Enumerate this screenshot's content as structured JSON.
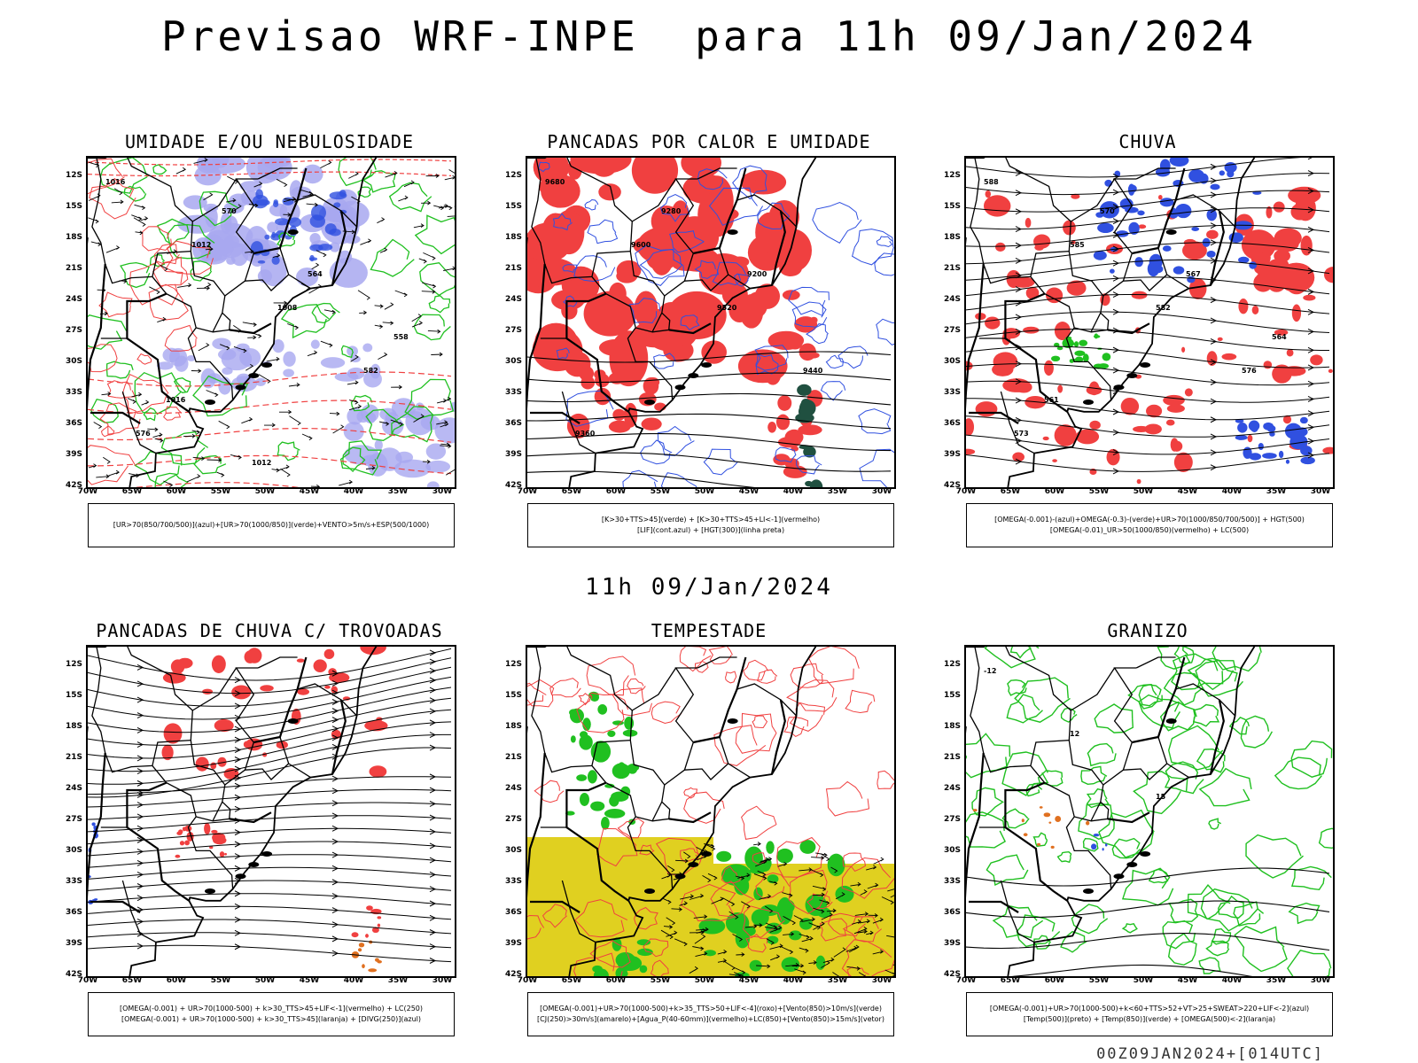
{
  "header": {
    "title": "Previsao WRF-INPE  para 11h 09/Jan/2024"
  },
  "mid_time": "11h 09/Jan/2024",
  "footer": "00Z09JAN2024+[014UTC]",
  "axes": {
    "lat_labels": [
      "12S",
      "15S",
      "18S",
      "21S",
      "24S",
      "27S",
      "30S",
      "33S",
      "36S",
      "39S",
      "42S"
    ],
    "lon_labels": [
      "70W",
      "65W",
      "60W",
      "55W",
      "50W",
      "45W",
      "40W",
      "35W",
      "30W"
    ]
  },
  "panels": [
    {
      "id": "umidade",
      "title": "UMIDADE E/OU NEBULOSIDADE",
      "legend": [
        "[UR>70(850/700/500)](azul)+[UR>70(1000/850)](verde)+VENTO>5m/s+ESP(500/1000)"
      ]
    },
    {
      "id": "pancadas-calor",
      "title": "PANCADAS POR CALOR E UMIDADE",
      "legend": [
        "[K>30+TTS>45](verde) + [K>30+TTS>45+LI<-1](vermelho)",
        "[LIF](cont.azul) + [HGT(300)](linha preta)"
      ]
    },
    {
      "id": "chuva",
      "title": "CHUVA",
      "legend": [
        "[OMEGA(-0.001)-(azul)+OMEGA(-0.3)-(verde)+UR>70(1000/850/700/500)] + HGT(500)",
        "[OMEGA(-0.01)_UR>50(1000/850)(vermelho) + LC(500)"
      ]
    },
    {
      "id": "trovoadas",
      "title": "PANCADAS DE CHUVA C/ TROVOADAS",
      "legend": [
        "[OMEGA(-0.001) + UR>70(1000-500) + k>30_TTS>45+LIF<-1](vermelho) + LC(250)",
        "[OMEGA(-0.001) + UR>70(1000-500) + k>30_TTS>45](laranja) + [DIVG(250)](azul)"
      ]
    },
    {
      "id": "tempestade",
      "title": "TEMPESTADE",
      "legend": [
        "[OMEGA(-0.001)+UR>70(1000-500)+k>35_TTS>50+LIF<-4](roxo)+[Vento(850)>10m/s](verde)",
        "[CJ(250)>30m/s](amarelo)+[Agua_P(40-60mm)](vermelho)+LC(850)+[Vento(850)>15m/s](vetor)"
      ]
    },
    {
      "id": "granizo",
      "title": "GRANIZO",
      "legend": [
        "[OMEGA(-0.001)+UR>70(1000-500)+k<60+TTS>52+VT>25+SWEAT>220+LIF<-2](azul)",
        "[Temp(500)](preto) + [Temp(850)](verde) + [OMEGA(500)<-2](laranja)"
      ]
    }
  ],
  "contour_labels": {
    "umidade": [
      "1016",
      "1012",
      "1008",
      "582",
      "576",
      "570",
      "564",
      "558",
      "1016",
      "1012"
    ],
    "pancadas-calor": [
      "9680",
      "9600",
      "9520",
      "9440",
      "9360",
      "9280",
      "9200"
    ],
    "chuva": [
      "588",
      "585",
      "582",
      "576",
      "573",
      "570",
      "567",
      "564",
      "561"
    ],
    "granizo": [
      "-12",
      "12",
      "15"
    ]
  },
  "colors": {
    "red": "#f04040",
    "blue": "#3050e0",
    "green": "#20c020",
    "lightblue": "#a8a8f0",
    "yellow": "#e0d020",
    "darkgreen": "#205040"
  }
}
